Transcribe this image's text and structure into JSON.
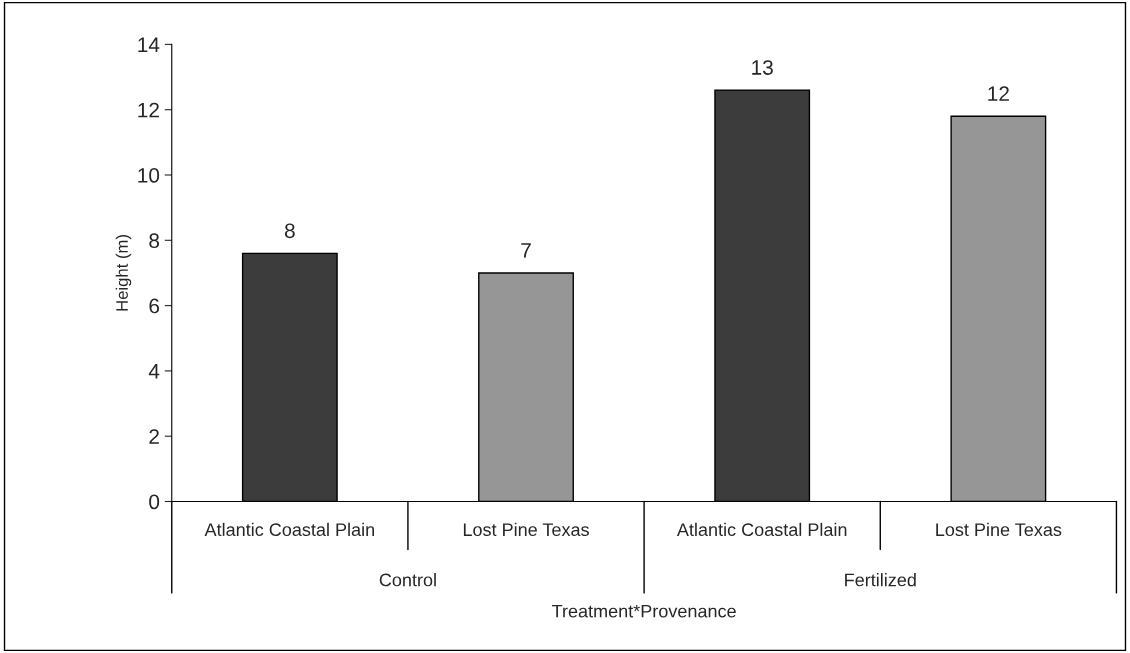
{
  "chart_data": {
    "type": "bar",
    "xlabel": "Treatment*Provenance",
    "ylabel": "Height (m)",
    "categories": [
      "Atlantic Coastal Plain",
      "Lost Pine Texas",
      "Atlantic Coastal Plain",
      "Lost Pine Texas"
    ],
    "values": [
      7.6,
      7.0,
      12.6,
      11.8
    ],
    "colors": [
      "#3c3c3c",
      "#969696",
      "#3c3c3c",
      "#969696"
    ],
    "value_labels": [
      "8",
      "7",
      "13",
      "12"
    ],
    "annotations": [
      "Control",
      "Fertilized"
    ],
    "ylim": [
      0,
      14
    ],
    "yticks": [
      0,
      2,
      4,
      6,
      8,
      10,
      12,
      14
    ],
    "grid": false,
    "legend": false
  }
}
